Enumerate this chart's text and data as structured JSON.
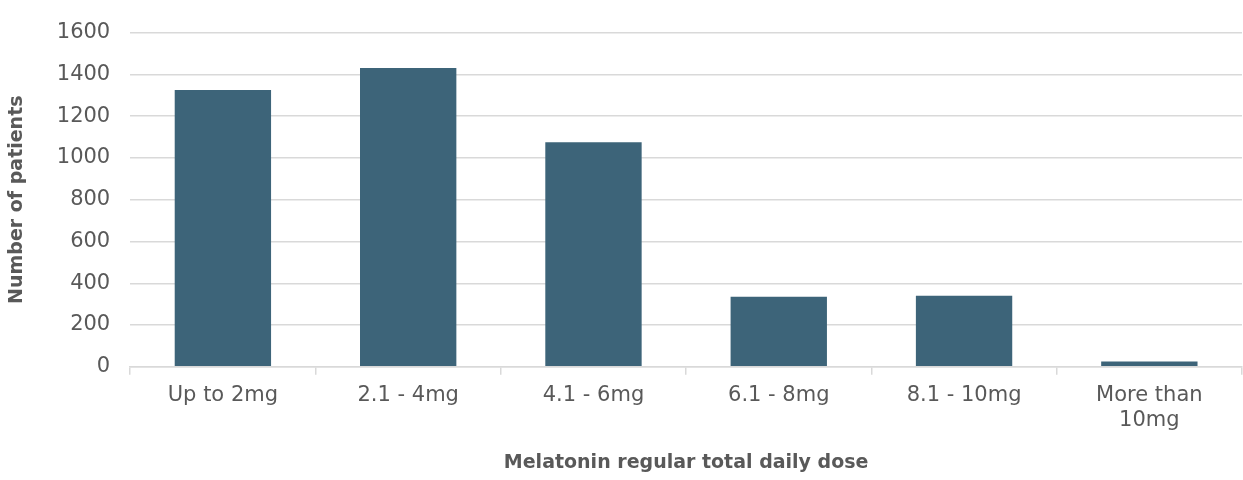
{
  "chart_data": {
    "type": "bar",
    "xlabel": "Melatonin regular total daily dose",
    "ylabel": "Number of patients",
    "categories": [
      "Up to 2mg",
      "2.1 - 4mg",
      "4.1 - 6mg",
      "6.1 - 8mg",
      "8.1 - 10mg",
      "More than 10mg"
    ],
    "values": [
      1325,
      1430,
      1075,
      335,
      340,
      25
    ],
    "color": "#3d6479",
    "ylim": [
      0,
      1600
    ],
    "yticks": [
      0,
      200,
      400,
      600,
      800,
      1000,
      1200,
      1400,
      1600
    ],
    "grid": "y"
  }
}
